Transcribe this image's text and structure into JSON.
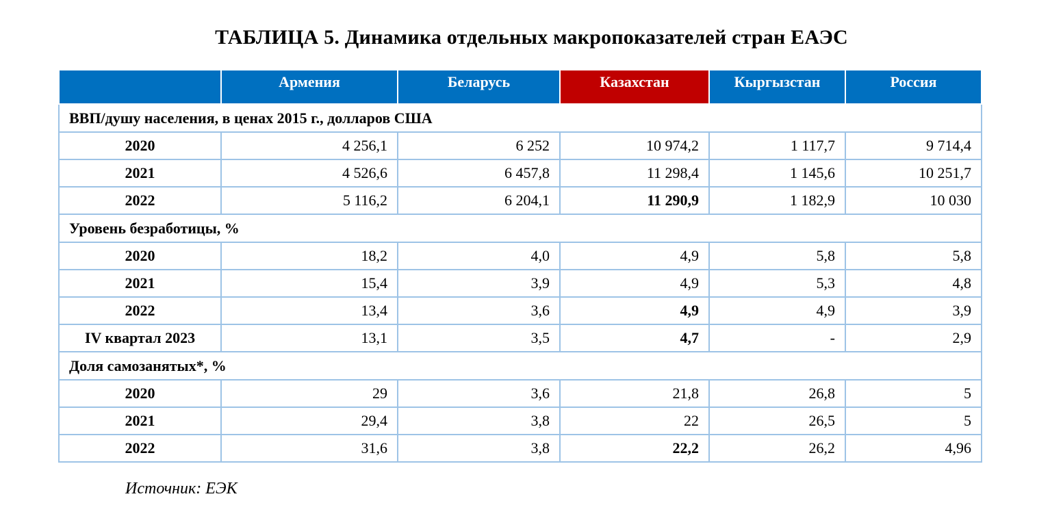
{
  "title": "ТАБЛИЦА 5. Динамика отдельных макропоказателей стран ЕАЭС",
  "header": {
    "corner": "",
    "columns": [
      "Армения",
      "Беларусь",
      "Казахстан",
      "Кыргызстан",
      "Россия"
    ],
    "highlighted_column": "Казахстан",
    "colors": {
      "header_bg": "#0070c0",
      "highlight_bg": "#c00000",
      "grid": "#9dc3e6"
    }
  },
  "sections": [
    {
      "label": "ВВП/душу населения, в ценах 2015 г., долларов США",
      "rows": [
        {
          "year": "2020",
          "values": [
            "4 256,1",
            "6 252",
            "10 974,2",
            "1 117,7",
            "9 714,4"
          ]
        },
        {
          "year": "2021",
          "values": [
            "4 526,6",
            "6 457,8",
            "11 298,4",
            "1 145,6",
            "10 251,7"
          ]
        },
        {
          "year": "2022",
          "values": [
            "5 116,2",
            "6 204,1",
            "11 290,9",
            "1 182,9",
            "10 030"
          ]
        }
      ]
    },
    {
      "label": "Уровень безработицы, %",
      "rows": [
        {
          "year": "2020",
          "values": [
            "18,2",
            "4,0",
            "4,9",
            "5,8",
            "5,8"
          ]
        },
        {
          "year": "2021",
          "values": [
            "15,4",
            "3,9",
            "4,9",
            "5,3",
            "4,8"
          ]
        },
        {
          "year": "2022",
          "values": [
            "13,4",
            "3,6",
            "4,9",
            "4,9",
            "3,9"
          ]
        },
        {
          "year": "IV квартал 2023",
          "values": [
            "13,1",
            "3,5",
            "4,7",
            "-",
            "2,9"
          ]
        }
      ]
    },
    {
      "label": "Доля самозанятых*, %",
      "rows": [
        {
          "year": "2020",
          "values": [
            "29",
            "3,6",
            "21,8",
            "26,8",
            "5"
          ]
        },
        {
          "year": "2021",
          "values": [
            "29,4",
            "3,8",
            "22",
            "26,5",
            "5"
          ]
        },
        {
          "year": "2022",
          "values": [
            "31,6",
            "3,8",
            "22,2",
            "26,2",
            "4,96"
          ]
        }
      ]
    }
  ],
  "source": "Источник: ЕЭК"
}
